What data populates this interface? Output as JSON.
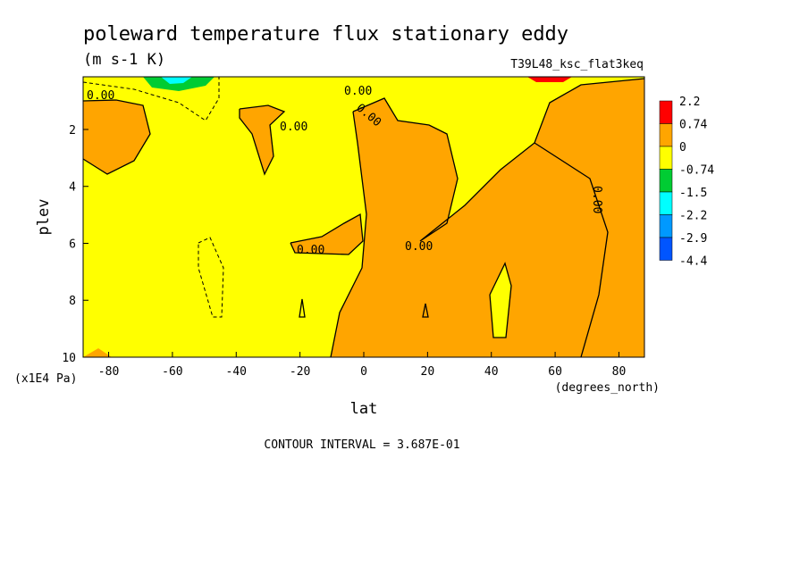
{
  "chart_data": {
    "type": "contour",
    "title": "poleward temperature flux stationary eddy",
    "units": "(m s-1 K)",
    "dataset": "T39L48_ksc_flat3keq",
    "x_label": "lat",
    "x_units": "(degrees_north)",
    "y_label": "plev",
    "y_units": "(x1E4 Pa)",
    "xlim": [
      -88,
      88
    ],
    "xticks": [
      -80,
      -60,
      -40,
      -20,
      0,
      20,
      40,
      60,
      80
    ],
    "ylim": [
      0.15,
      10
    ],
    "yticks": [
      2,
      4,
      6,
      8,
      10
    ],
    "y_inverted": true,
    "levels": [
      2.2,
      0.74,
      0,
      -0.74,
      -1.5,
      -2.2,
      -2.9,
      -4.4
    ],
    "colors": [
      "#ff0000",
      "#ffa500",
      "#ffff00",
      "#00cc33",
      "#00ffff",
      "#0099ff",
      "#0055ff"
    ],
    "contour_labels": [
      "0.00",
      "0.00",
      "0.00",
      "0.00",
      "0.00",
      "0.00",
      "0.00"
    ],
    "note": "CONTOUR INTERVAL = 3.687E-01"
  }
}
